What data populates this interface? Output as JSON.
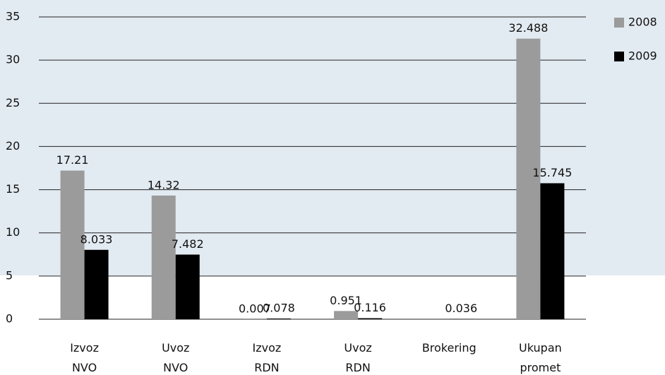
{
  "chart_data": {
    "type": "bar",
    "categories": [
      "Izvoz NVO",
      "Uvoz NVO",
      "Izvoz RDN",
      "Uvoz RDN",
      "Brokering",
      "Ukupan promet"
    ],
    "series": [
      {
        "name": "2008",
        "color": "#9b9b9b",
        "values": [
          17.21,
          14.32,
          0.007,
          0.951,
          null,
          32.488
        ]
      },
      {
        "name": "2009",
        "color": "#000000",
        "values": [
          8.033,
          7.482,
          0.078,
          0.116,
          0.036,
          15.745
        ]
      }
    ],
    "ylim": [
      0,
      35
    ],
    "yticks": [
      0,
      5,
      10,
      15,
      20,
      25,
      30,
      35
    ],
    "grid": true,
    "legend": "right"
  }
}
